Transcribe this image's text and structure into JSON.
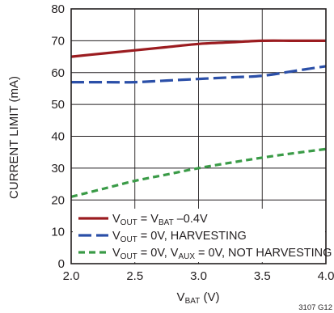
{
  "chart_data": {
    "type": "line",
    "xlabel": {
      "main": "V",
      "sub": "BAT",
      "suffix": " (V)"
    },
    "ylabel": "CURRENT LIMIT (mA)",
    "xlim": [
      2.0,
      4.0
    ],
    "ylim": [
      0,
      80
    ],
    "x_ticks": [
      "2.0",
      "2.5",
      "3.0",
      "3.5",
      "4.0"
    ],
    "y_ticks": [
      "0",
      "10",
      "20",
      "30",
      "40",
      "50",
      "60",
      "70",
      "80"
    ],
    "grid": true,
    "legend_position": "bottom-left",
    "figure_code": "3107 G12",
    "series": [
      {
        "name": "V_OUT = V_BAT –0.4V",
        "label_parts": [
          {
            "t": "V"
          },
          {
            "t": "OUT",
            "sub": true
          },
          {
            "t": " = V"
          },
          {
            "t": "BAT",
            "sub": true
          },
          {
            "t": " –0.4V"
          }
        ],
        "color": "#9b1c20",
        "dash": "solid",
        "x": [
          2.0,
          2.25,
          2.5,
          2.75,
          3.0,
          3.25,
          3.5,
          3.75,
          4.0
        ],
        "y": [
          65.0,
          66.0,
          67.0,
          68.0,
          69.0,
          69.5,
          70.0,
          70.0,
          70.0
        ]
      },
      {
        "name": "V_OUT = 0V, HARVESTING",
        "label_parts": [
          {
            "t": "V"
          },
          {
            "t": "OUT",
            "sub": true
          },
          {
            "t": " = 0V, HARVESTING"
          }
        ],
        "color": "#2b4fa8",
        "dash": "long",
        "x": [
          2.0,
          2.25,
          2.5,
          2.75,
          3.0,
          3.25,
          3.5,
          3.75,
          4.0
        ],
        "y": [
          57.0,
          57.0,
          57.0,
          57.5,
          58.0,
          58.5,
          59.0,
          60.5,
          62.0
        ]
      },
      {
        "name": "V_OUT = 0V, V_AUX = 0V, NOT HARVESTING",
        "label_parts": [
          {
            "t": "V"
          },
          {
            "t": "OUT",
            "sub": true
          },
          {
            "t": " = 0V, V"
          },
          {
            "t": "AUX",
            "sub": true
          },
          {
            "t": " = 0V, NOT HARVESTING"
          }
        ],
        "color": "#3a9b47",
        "dash": "short",
        "x": [
          2.0,
          2.25,
          2.5,
          2.75,
          3.0,
          3.25,
          3.5,
          3.75,
          4.0
        ],
        "y": [
          21.0,
          23.5,
          26.0,
          28.0,
          30.0,
          31.7,
          33.3,
          34.7,
          36.0
        ]
      }
    ]
  }
}
